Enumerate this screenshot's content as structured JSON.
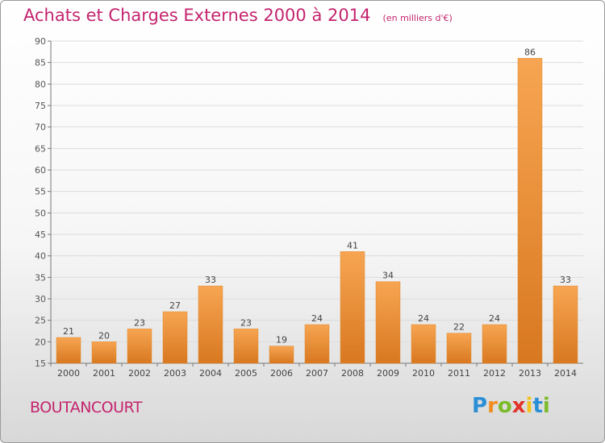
{
  "chart_data": {
    "type": "bar",
    "title": "Achats et Charges Externes 2000 à 2014",
    "subtitle": "(en milliers d'€)",
    "categories": [
      "2000",
      "2001",
      "2002",
      "2003",
      "2004",
      "2005",
      "2006",
      "2007",
      "2008",
      "2009",
      "2010",
      "2011",
      "2012",
      "2013",
      "2014"
    ],
    "values": [
      21,
      20,
      23,
      27,
      33,
      23,
      19,
      24,
      41,
      34,
      24,
      22,
      24,
      86,
      33
    ],
    "ylim": [
      15,
      90
    ],
    "yticks": [
      15,
      20,
      25,
      30,
      35,
      40,
      45,
      50,
      55,
      60,
      65,
      70,
      75,
      80,
      85,
      90
    ],
    "grid": true,
    "legend": "none"
  },
  "footer": {
    "city": "BOUTANCOURT"
  },
  "logo": {
    "letters": [
      "P",
      "r",
      "o",
      "x",
      "i",
      "t",
      "i"
    ],
    "colors": [
      "#2b8fd6",
      "#f28c1e",
      "#7cbb2a",
      "#e2332a",
      "#f2c21e",
      "#2b8fd6",
      "#7cbb2a"
    ]
  },
  "colors": {
    "bar_light": "#f7a552",
    "bar_dark": "#d87820",
    "accent": "#c4246e"
  }
}
